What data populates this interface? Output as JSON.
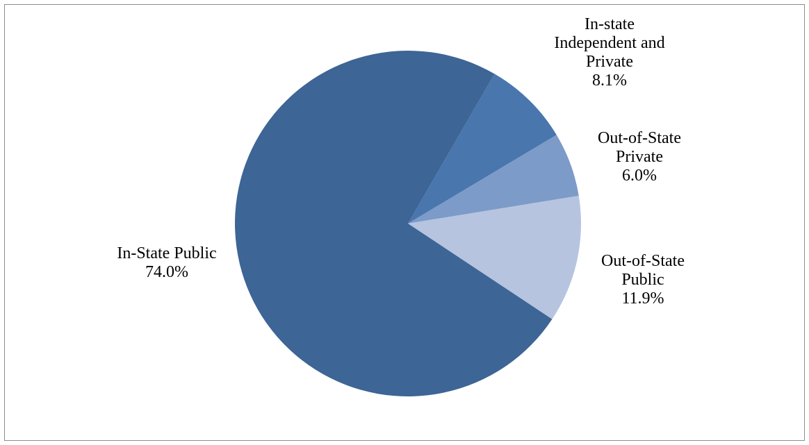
{
  "chart_data": {
    "type": "pie",
    "title": "",
    "slices": [
      {
        "name_lines": [
          "In-state",
          "Independent and",
          "Private"
        ],
        "value": 8.1,
        "value_label": "8.1%",
        "color": "#4a76ae"
      },
      {
        "name_lines": [
          "Out-of-State",
          "Private"
        ],
        "value": 6.0,
        "value_label": "6.0%",
        "color": "#7d9bc8"
      },
      {
        "name_lines": [
          "Out-of-State",
          "Public"
        ],
        "value": 11.9,
        "value_label": "11.9%",
        "color": "#b6c4e0"
      },
      {
        "name_lines": [
          "In-State Public"
        ],
        "value": 74.0,
        "value_label": "74.0%",
        "color": "#3d6595"
      }
    ]
  }
}
